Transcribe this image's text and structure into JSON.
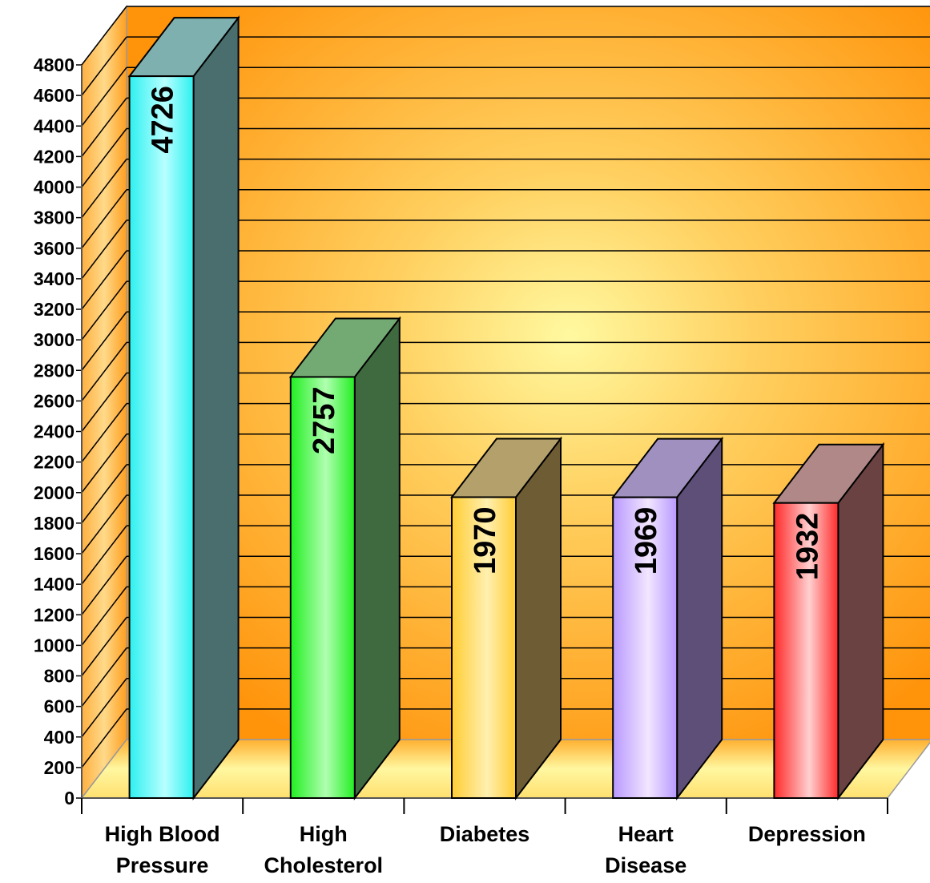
{
  "chart_data": {
    "type": "bar",
    "categories": [
      [
        "High Blood",
        "Pressure"
      ],
      [
        "High",
        "Cholesterol"
      ],
      [
        "Diabetes"
      ],
      [
        "Heart",
        "Disease"
      ],
      [
        "Depression"
      ]
    ],
    "values": [
      4726,
      2757,
      1970,
      1969,
      1932
    ],
    "value_labels": [
      "4726",
      "2757",
      "1970",
      "1969",
      "1932"
    ],
    "y_ticks": [
      "0",
      "200",
      "400",
      "600",
      "800",
      "1000",
      "1200",
      "1400",
      "1600",
      "1800",
      "2000",
      "2200",
      "2400",
      "2600",
      "2800",
      "3000",
      "3200",
      "3400",
      "3600",
      "3800",
      "4000",
      "4200",
      "4400",
      "4600",
      "4800"
    ],
    "ylim": [
      0,
      4800
    ],
    "grid": true,
    "style": "3d",
    "colors": {
      "wall_orange": "#ff9a0a",
      "wall_glow": "#fff38a",
      "bars": [
        {
          "light": "#b8ffff",
          "mid": "#2ef0f0",
          "side": "#4a6e6e",
          "top": "#7fb0b0"
        },
        {
          "light": "#b0ffb0",
          "mid": "#22ee22",
          "side": "#3f6a3f",
          "top": "#73aa73"
        },
        {
          "light": "#fff0b0",
          "mid": "#ffcc33",
          "side": "#6e5c34",
          "top": "#b3a06a"
        },
        {
          "light": "#f2e6ff",
          "mid": "#b899ff",
          "side": "#5e4f78",
          "top": "#a090c0"
        },
        {
          "light": "#ffd0d0",
          "mid": "#ff2a2a",
          "side": "#6a4242",
          "top": "#b08888"
        }
      ]
    }
  }
}
